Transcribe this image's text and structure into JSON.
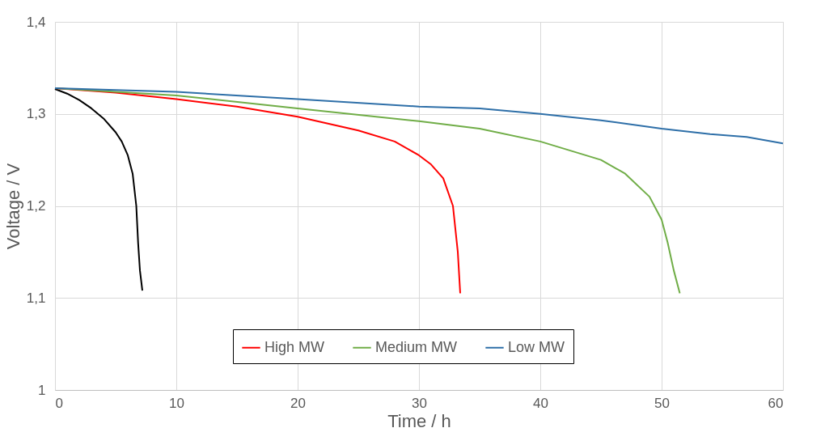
{
  "chart_data": {
    "type": "line",
    "xlabel": "Time / h",
    "ylabel": "Voltage / V",
    "xlim": [
      0,
      60
    ],
    "xticks": [
      0,
      10,
      20,
      30,
      40,
      50,
      60
    ],
    "ylim": [
      1,
      1.4
    ],
    "yticks": [
      {
        "value": 1,
        "label": "1"
      },
      {
        "value": 1.1,
        "label": "1,1"
      },
      {
        "value": 1.2,
        "label": "1,2"
      },
      {
        "value": 1.3,
        "label": "1,3"
      },
      {
        "value": 1.4,
        "label": "1,4"
      }
    ],
    "grid": true,
    "legend": "bottom",
    "marker": "none",
    "line_style": "solid",
    "series": [
      {
        "color": "#000000",
        "x": [
          0,
          1,
          2,
          3,
          4,
          5,
          5.5,
          6,
          6.4,
          6.7,
          6.85,
          7.0,
          7.2
        ],
        "values": [
          1.327,
          1.322,
          1.315,
          1.306,
          1.295,
          1.28,
          1.27,
          1.255,
          1.235,
          1.2,
          1.16,
          1.13,
          1.108
        ]
      },
      {
        "name": "High MW",
        "color": "#ff0000",
        "x": [
          0,
          5,
          10,
          15,
          20,
          25,
          28,
          30,
          31,
          32,
          32.8,
          33.2,
          33.4
        ],
        "values": [
          1.328,
          1.323,
          1.316,
          1.308,
          1.297,
          1.282,
          1.27,
          1.255,
          1.245,
          1.23,
          1.2,
          1.15,
          1.105
        ]
      },
      {
        "name": "Medium MW",
        "color": "#70ad47",
        "x": [
          0,
          10,
          20,
          30,
          35,
          40,
          45,
          47,
          49,
          50,
          50.5,
          51,
          51.5
        ],
        "values": [
          1.328,
          1.32,
          1.306,
          1.292,
          1.284,
          1.27,
          1.25,
          1.235,
          1.21,
          1.185,
          1.16,
          1.13,
          1.105
        ]
      },
      {
        "name": "Low MW",
        "color": "#2e6fa8",
        "x": [
          0,
          10,
          20,
          30,
          35,
          40,
          45,
          50,
          54,
          57,
          60
        ],
        "values": [
          1.328,
          1.324,
          1.316,
          1.308,
          1.306,
          1.3,
          1.293,
          1.284,
          1.278,
          1.275,
          1.268
        ]
      }
    ]
  }
}
